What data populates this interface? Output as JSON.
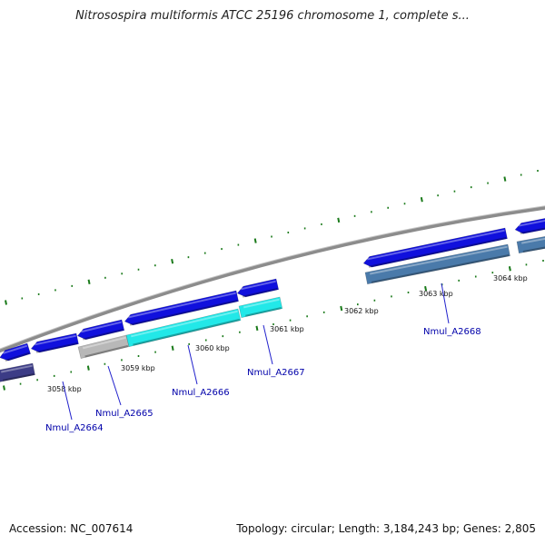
{
  "title": "Nitrosospira multiformis ATCC 25196 chromosome 1, complete s...",
  "footer": {
    "accession": "Accession: NC_007614",
    "summary": "Topology: circular; Length: 3,184,243 bp; Genes: 2,805"
  },
  "colors": {
    "backbone": "#8c8c8c",
    "tick": "#1a7a1a",
    "forward_gene": "#1010dd",
    "cds_cyan": "#22e8e8",
    "cds_steel": "#4a7aaa",
    "cds_gray": "#b8b8b8",
    "cds_navy": "#3c3c86",
    "label": "#0000aa"
  },
  "scale": {
    "tick_labels": [
      "3058 kbp",
      "3059 kbp",
      "3060 kbp",
      "3061 kbp",
      "3062 kbp",
      "3063 kbp",
      "3064 kbp"
    ]
  },
  "gene_labels": [
    "Nmul_A2664",
    "Nmul_A2665",
    "Nmul_A2666",
    "Nmul_A2667",
    "Nmul_A2668"
  ]
}
